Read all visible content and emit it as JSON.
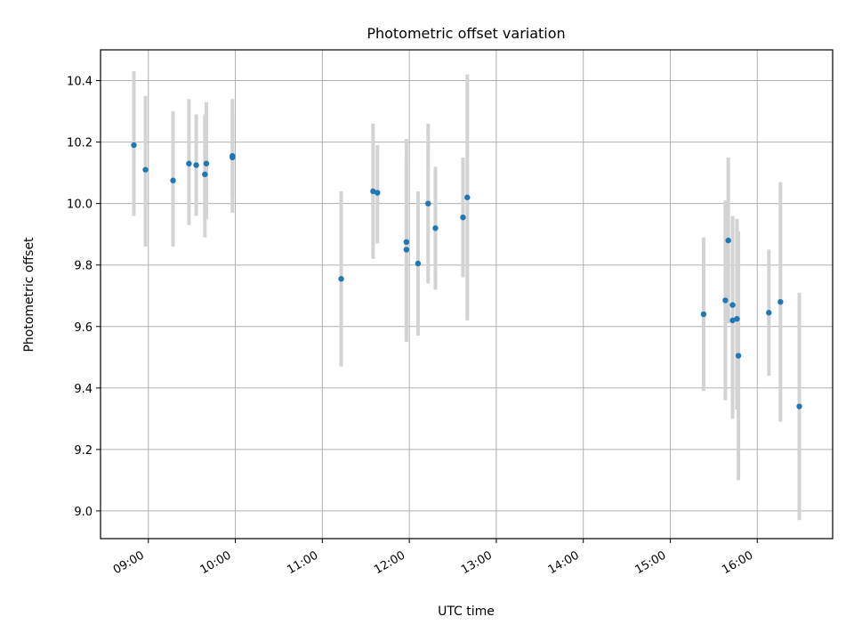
{
  "chart_data": {
    "type": "scatter",
    "title": "Photometric offset variation",
    "xlabel": "UTC time",
    "ylabel": "Photometric offset",
    "xlim": [
      "08:27",
      "16:52"
    ],
    "ylim": [
      8.91,
      10.5
    ],
    "xticks": [
      "09:00",
      "10:00",
      "11:00",
      "12:00",
      "13:00",
      "14:00",
      "15:00",
      "16:00"
    ],
    "yticks": [
      9.0,
      9.2,
      9.4,
      9.6,
      9.8,
      10.0,
      10.2,
      10.4
    ],
    "grid": true,
    "series": [
      {
        "marker_color": "#1f77b4",
        "errorbar_color": "#d3d3d3",
        "points": [
          {
            "t": "08:50",
            "y": 10.19,
            "lo": 9.96,
            "hi": 10.43
          },
          {
            "t": "08:58",
            "y": 10.11,
            "lo": 9.86,
            "hi": 10.35
          },
          {
            "t": "09:17",
            "y": 10.075,
            "lo": 9.86,
            "hi": 10.3
          },
          {
            "t": "09:28",
            "y": 10.13,
            "lo": 9.93,
            "hi": 10.34
          },
          {
            "t": "09:33",
            "y": 10.125,
            "lo": 9.96,
            "hi": 10.29
          },
          {
            "t": "09:39",
            "y": 10.095,
            "lo": 9.89,
            "hi": 10.29
          },
          {
            "t": "09:40",
            "y": 10.13,
            "lo": 9.95,
            "hi": 10.33
          },
          {
            "t": "09:58",
            "y": 10.15,
            "lo": 9.97,
            "hi": 10.34
          },
          {
            "t": "09:58",
            "y": 10.155,
            "lo": 10.02,
            "hi": 10.29
          },
          {
            "t": "11:13",
            "y": 9.755,
            "lo": 9.47,
            "hi": 10.04
          },
          {
            "t": "11:35",
            "y": 10.04,
            "lo": 9.82,
            "hi": 10.26
          },
          {
            "t": "11:38",
            "y": 10.035,
            "lo": 9.87,
            "hi": 10.19
          },
          {
            "t": "11:58",
            "y": 9.875,
            "lo": 9.55,
            "hi": 10.21
          },
          {
            "t": "11:58",
            "y": 9.85,
            "lo": 9.57,
            "hi": 10.13
          },
          {
            "t": "12:06",
            "y": 9.805,
            "lo": 9.57,
            "hi": 10.04
          },
          {
            "t": "12:13",
            "y": 10.0,
            "lo": 9.74,
            "hi": 10.26
          },
          {
            "t": "12:18",
            "y": 9.92,
            "lo": 9.72,
            "hi": 10.12
          },
          {
            "t": "12:37",
            "y": 9.955,
            "lo": 9.76,
            "hi": 10.15
          },
          {
            "t": "12:40",
            "y": 10.02,
            "lo": 9.62,
            "hi": 10.42
          },
          {
            "t": "15:23",
            "y": 9.64,
            "lo": 9.39,
            "hi": 9.89
          },
          {
            "t": "15:38",
            "y": 9.685,
            "lo": 9.36,
            "hi": 10.01
          },
          {
            "t": "15:40",
            "y": 9.88,
            "lo": 9.61,
            "hi": 10.15
          },
          {
            "t": "15:43",
            "y": 9.67,
            "lo": 9.37,
            "hi": 9.96
          },
          {
            "t": "15:43",
            "y": 9.62,
            "lo": 9.3,
            "hi": 9.94
          },
          {
            "t": "15:46",
            "y": 9.625,
            "lo": 9.33,
            "hi": 9.95
          },
          {
            "t": "15:47",
            "y": 9.505,
            "lo": 9.1,
            "hi": 9.91
          },
          {
            "t": "16:08",
            "y": 9.645,
            "lo": 9.44,
            "hi": 9.85
          },
          {
            "t": "16:16",
            "y": 9.68,
            "lo": 9.29,
            "hi": 10.07
          },
          {
            "t": "16:29",
            "y": 9.34,
            "lo": 8.97,
            "hi": 9.71
          }
        ]
      }
    ]
  }
}
